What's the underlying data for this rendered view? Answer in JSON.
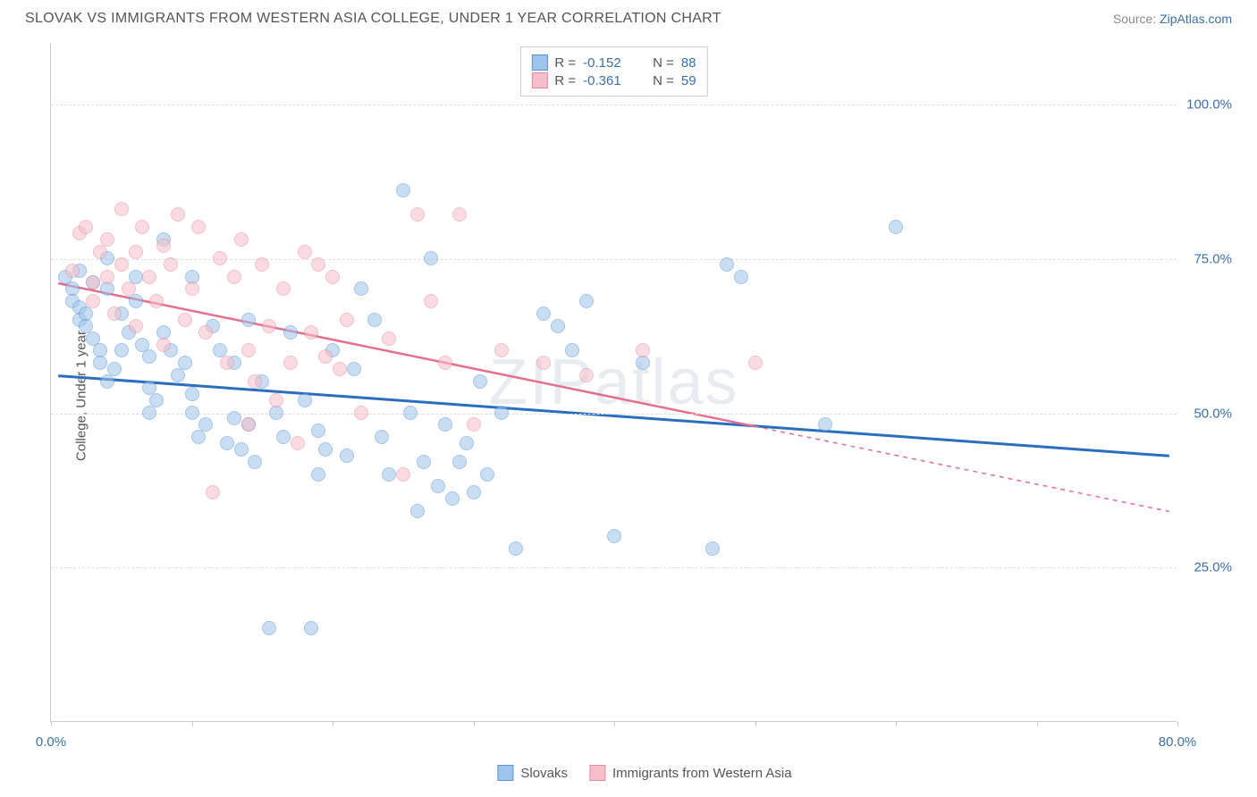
{
  "header": {
    "title": "SLOVAK VS IMMIGRANTS FROM WESTERN ASIA COLLEGE, UNDER 1 YEAR CORRELATION CHART",
    "source_label": "Source: ",
    "source_link": "ZipAtlas.com"
  },
  "ylabel": "College, Under 1 year",
  "watermark": "ZIPatlas",
  "chart": {
    "type": "scatter",
    "xlim": [
      0,
      80
    ],
    "ylim": [
      0,
      110
    ],
    "x_ticks": [
      0,
      10,
      20,
      30,
      40,
      50,
      60,
      70,
      80
    ],
    "x_tick_labels": {
      "0": "0.0%",
      "80": "80.0%"
    },
    "y_ticks": [
      25,
      50,
      75,
      100
    ],
    "y_tick_labels": {
      "25": "25.0%",
      "50": "50.0%",
      "75": "75.0%",
      "100": "100.0%"
    },
    "background_color": "#ffffff",
    "grid_color": "#dddddd",
    "axis_color": "#cccccc",
    "point_radius": 8,
    "point_opacity": 0.55,
    "series": [
      {
        "name": "Slovaks",
        "color_fill": "#9ec4eb",
        "color_stroke": "#5a94d6",
        "line_color": "#2a6fbf",
        "r_value": "-0.152",
        "n_value": "88",
        "regression": {
          "x1": 0.5,
          "y1": 56,
          "x2": 79.5,
          "y2": 43,
          "dashed_from_x": null
        },
        "points": [
          [
            1,
            72
          ],
          [
            1.5,
            70
          ],
          [
            1.5,
            68
          ],
          [
            2,
            73
          ],
          [
            2,
            67
          ],
          [
            2,
            65
          ],
          [
            2.5,
            64
          ],
          [
            2.5,
            66
          ],
          [
            3,
            71
          ],
          [
            3,
            62
          ],
          [
            3.5,
            60
          ],
          [
            3.5,
            58
          ],
          [
            4,
            70
          ],
          [
            4,
            75
          ],
          [
            4,
            55
          ],
          [
            4.5,
            57
          ],
          [
            5,
            66
          ],
          [
            5,
            60
          ],
          [
            5.5,
            63
          ],
          [
            6,
            68
          ],
          [
            6,
            72
          ],
          [
            6.5,
            61
          ],
          [
            7,
            59
          ],
          [
            7,
            54
          ],
          [
            7.5,
            52
          ],
          [
            8,
            78
          ],
          [
            8,
            63
          ],
          [
            8.5,
            60
          ],
          [
            9,
            56
          ],
          [
            9.5,
            58
          ],
          [
            10,
            53
          ],
          [
            10,
            50
          ],
          [
            10.5,
            46
          ],
          [
            11,
            48
          ],
          [
            11.5,
            64
          ],
          [
            12,
            60
          ],
          [
            12.5,
            45
          ],
          [
            13,
            58
          ],
          [
            13,
            49
          ],
          [
            13.5,
            44
          ],
          [
            14,
            65
          ],
          [
            14.5,
            42
          ],
          [
            15,
            55
          ],
          [
            15.5,
            15
          ],
          [
            16,
            50
          ],
          [
            16.5,
            46
          ],
          [
            17,
            63
          ],
          [
            18,
            52
          ],
          [
            18.5,
            15
          ],
          [
            19,
            47
          ],
          [
            19.5,
            44
          ],
          [
            20,
            60
          ],
          [
            21,
            43
          ],
          [
            21.5,
            57
          ],
          [
            22,
            70
          ],
          [
            23,
            65
          ],
          [
            23.5,
            46
          ],
          [
            24,
            40
          ],
          [
            25,
            86
          ],
          [
            25.5,
            50
          ],
          [
            26,
            34
          ],
          [
            26.5,
            42
          ],
          [
            27,
            75
          ],
          [
            27.5,
            38
          ],
          [
            28,
            48
          ],
          [
            28.5,
            36
          ],
          [
            29,
            42
          ],
          [
            29.5,
            45
          ],
          [
            30,
            37
          ],
          [
            30.5,
            55
          ],
          [
            31,
            40
          ],
          [
            33,
            28
          ],
          [
            35,
            66
          ],
          [
            36,
            64
          ],
          [
            37,
            60
          ],
          [
            38,
            68
          ],
          [
            40,
            30
          ],
          [
            42,
            58
          ],
          [
            47,
            28
          ],
          [
            48,
            74
          ],
          [
            49,
            72
          ],
          [
            55,
            48
          ],
          [
            60,
            80
          ],
          [
            7,
            50
          ],
          [
            10,
            72
          ],
          [
            14,
            48
          ],
          [
            19,
            40
          ],
          [
            32,
            50
          ]
        ]
      },
      {
        "name": "Immigrants from Western Asia",
        "color_fill": "#f5bfc9",
        "color_stroke": "#e68ba0",
        "line_color": "#e3708c",
        "r_value": "-0.361",
        "n_value": "59",
        "regression": {
          "x1": 0.5,
          "y1": 71,
          "x2": 79.5,
          "y2": 34,
          "dashed_from_x": 50
        },
        "points": [
          [
            1.5,
            73
          ],
          [
            2,
            79
          ],
          [
            2.5,
            80
          ],
          [
            3,
            71
          ],
          [
            3,
            68
          ],
          [
            3.5,
            76
          ],
          [
            4,
            78
          ],
          [
            4,
            72
          ],
          [
            4.5,
            66
          ],
          [
            5,
            83
          ],
          [
            5,
            74
          ],
          [
            5.5,
            70
          ],
          [
            6,
            76
          ],
          [
            6,
            64
          ],
          [
            6.5,
            80
          ],
          [
            7,
            72
          ],
          [
            7.5,
            68
          ],
          [
            8,
            61
          ],
          [
            8,
            77
          ],
          [
            8.5,
            74
          ],
          [
            9,
            82
          ],
          [
            9.5,
            65
          ],
          [
            10,
            70
          ],
          [
            10.5,
            80
          ],
          [
            11,
            63
          ],
          [
            11.5,
            37
          ],
          [
            12,
            75
          ],
          [
            12.5,
            58
          ],
          [
            13,
            72
          ],
          [
            13.5,
            78
          ],
          [
            14,
            60
          ],
          [
            14,
            48
          ],
          [
            14.5,
            55
          ],
          [
            15,
            74
          ],
          [
            15.5,
            64
          ],
          [
            16,
            52
          ],
          [
            16.5,
            70
          ],
          [
            17,
            58
          ],
          [
            17.5,
            45
          ],
          [
            18,
            76
          ],
          [
            18.5,
            63
          ],
          [
            19,
            74
          ],
          [
            19.5,
            59
          ],
          [
            20,
            72
          ],
          [
            20.5,
            57
          ],
          [
            21,
            65
          ],
          [
            22,
            50
          ],
          [
            24,
            62
          ],
          [
            25,
            40
          ],
          [
            26,
            82
          ],
          [
            27,
            68
          ],
          [
            28,
            58
          ],
          [
            29,
            82
          ],
          [
            30,
            48
          ],
          [
            32,
            60
          ],
          [
            35,
            58
          ],
          [
            38,
            56
          ],
          [
            42,
            60
          ],
          [
            50,
            58
          ]
        ]
      }
    ]
  },
  "stats_box": {
    "r_label": "R =",
    "n_label": "N ="
  },
  "legend": {
    "series1": "Slovaks",
    "series2": "Immigrants from Western Asia"
  }
}
